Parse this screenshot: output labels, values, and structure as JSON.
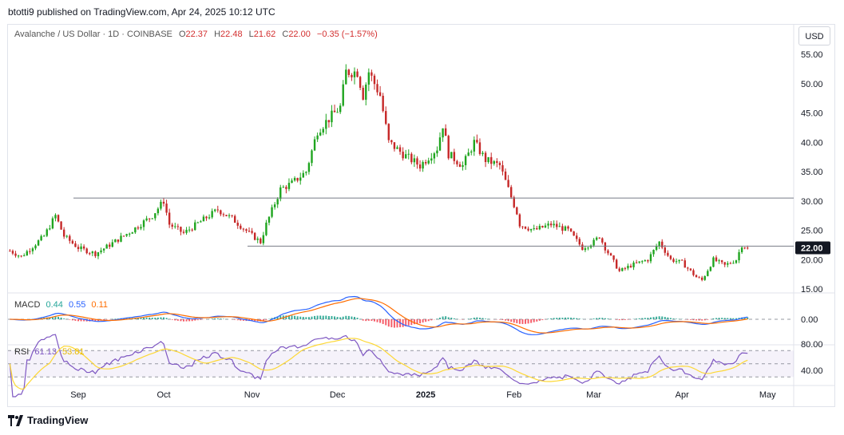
{
  "header": {
    "published": "btotti9 published on TradingView.com, Apr 24, 2025 10:12 UTC"
  },
  "legend": {
    "symbol": "Avalanche / US Dollar · 1D · COINBASE",
    "o_label": "O",
    "o": "22.37",
    "h_label": "H",
    "h": "22.48",
    "l_label": "L",
    "l": "21.62",
    "c_label": "C",
    "c": "22.00",
    "change": "−0.35 (−1.57%)"
  },
  "currency_button": "USD",
  "macd": {
    "label": "MACD",
    "v1": "0.44",
    "v2": "0.55",
    "v3": "0.11"
  },
  "rsi": {
    "label": "RSI",
    "v1": "61.13",
    "v2": "53.81"
  },
  "footer": {
    "brand": "TradingView"
  },
  "colors": {
    "up": "#089981",
    "down": "#f23645",
    "up_candle": "#1fa51f",
    "down_candle": "#c62828",
    "macd": "#2962ff",
    "signal": "#ff6d00",
    "rsi": "#7e57c2",
    "rsi_ma": "#fdd835"
  },
  "chart_data": {
    "type": "candlestick",
    "price_axis": {
      "ticks": [
        "55.00",
        "50.00",
        "45.00",
        "40.00",
        "35.00",
        "30.00",
        "25.00",
        "20.00",
        "15.00"
      ],
      "range": [
        14,
        58
      ]
    },
    "macd_axis": {
      "ticks": [
        "0.00"
      ]
    },
    "rsi_axis": {
      "ticks": [
        "80.00",
        "40.00"
      ],
      "bands": [
        70,
        50,
        30
      ]
    },
    "time_axis": {
      "ticks": [
        "Sep",
        "Oct",
        "Nov",
        "Dec",
        "2025",
        "Feb",
        "Mar",
        "Apr",
        "May"
      ]
    },
    "current_price": "22.00",
    "horizontal_levels": [
      30.5,
      22.3
    ],
    "close_anchors": [
      [
        "2024-08-08",
        21.5
      ],
      [
        "2024-08-12",
        20.5
      ],
      [
        "2024-08-20",
        24
      ],
      [
        "2024-08-24",
        27.5
      ],
      [
        "2024-08-27",
        24
      ],
      [
        "2024-09-01",
        22
      ],
      [
        "2024-09-07",
        21
      ],
      [
        "2024-09-12",
        22.5
      ],
      [
        "2024-09-20",
        25
      ],
      [
        "2024-09-27",
        27.5
      ],
      [
        "2024-10-01",
        30
      ],
      [
        "2024-10-03",
        26
      ],
      [
        "2024-10-08",
        24.5
      ],
      [
        "2024-10-14",
        26.5
      ],
      [
        "2024-10-20",
        28.5
      ],
      [
        "2024-10-25",
        27
      ],
      [
        "2024-10-31",
        24.5
      ],
      [
        "2024-11-04",
        23
      ],
      [
        "2024-11-06",
        26
      ],
      [
        "2024-11-11",
        32
      ],
      [
        "2024-11-15",
        33
      ],
      [
        "2024-11-20",
        35
      ],
      [
        "2024-11-24",
        42
      ],
      [
        "2024-11-28",
        44
      ],
      [
        "2024-12-02",
        46
      ],
      [
        "2024-12-04",
        52
      ],
      [
        "2024-12-08",
        52
      ],
      [
        "2024-12-10",
        48
      ],
      [
        "2024-12-12",
        52
      ],
      [
        "2024-12-16",
        48
      ],
      [
        "2024-12-19",
        40
      ],
      [
        "2024-12-24",
        38
      ],
      [
        "2024-12-30",
        36
      ],
      [
        "2025-01-05",
        39
      ],
      [
        "2025-01-07",
        43
      ],
      [
        "2025-01-09",
        38
      ],
      [
        "2025-01-14",
        36
      ],
      [
        "2025-01-18",
        40
      ],
      [
        "2025-01-22",
        37
      ],
      [
        "2025-01-27",
        36
      ],
      [
        "2025-02-02",
        28
      ],
      [
        "2025-02-03",
        26
      ],
      [
        "2025-02-08",
        25
      ],
      [
        "2025-02-14",
        26
      ],
      [
        "2025-02-20",
        25
      ],
      [
        "2025-02-25",
        22
      ],
      [
        "2025-03-01",
        23
      ],
      [
        "2025-03-03",
        24
      ],
      [
        "2025-03-05",
        22
      ],
      [
        "2025-03-10",
        18
      ],
      [
        "2025-03-14",
        19
      ],
      [
        "2025-03-20",
        20
      ],
      [
        "2025-03-24",
        23
      ],
      [
        "2025-03-28",
        20
      ],
      [
        "2025-04-01",
        19.5
      ],
      [
        "2025-04-06",
        17
      ],
      [
        "2025-04-08",
        16.5
      ],
      [
        "2025-04-12",
        20
      ],
      [
        "2025-04-16",
        19
      ],
      [
        "2025-04-20",
        20
      ],
      [
        "2025-04-22",
        22.5
      ],
      [
        "2025-04-24",
        22
      ]
    ]
  }
}
